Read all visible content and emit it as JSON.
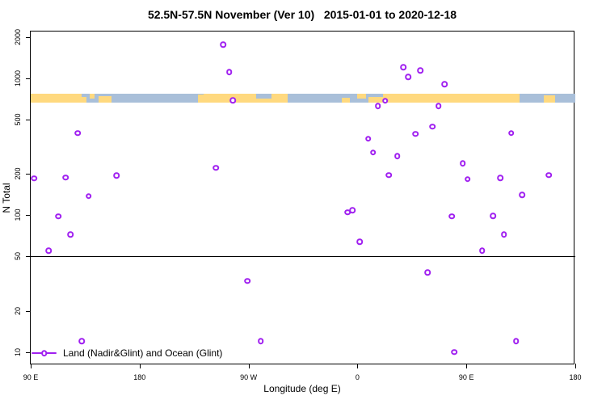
{
  "chart_data": {
    "type": "scatter",
    "title": "52.5N-57.5N November (Ver 10)   2015-01-01 to 2020-12-18",
    "xlabel": "Longitude (deg E)",
    "ylabel": "N Total",
    "y_scale": "log",
    "xlim": [
      90,
      540
    ],
    "ylim": [
      8,
      2200
    ],
    "x_ticks": [
      {
        "v": 90,
        "label": "90 E"
      },
      {
        "v": 180,
        "label": "180"
      },
      {
        "v": 270,
        "label": "90 W"
      },
      {
        "v": 360,
        "label": "0"
      },
      {
        "v": 450,
        "label": "90 E"
      },
      {
        "v": 540,
        "label": "180"
      }
    ],
    "y_ticks": [
      {
        "v": 10,
        "label": "10"
      },
      {
        "v": 20,
        "label": "20"
      },
      {
        "v": 50,
        "label": "50"
      },
      {
        "v": 100,
        "label": "100"
      },
      {
        "v": 200,
        "label": "200"
      },
      {
        "v": 500,
        "label": "500"
      },
      {
        "v": 1000,
        "label": "1000"
      },
      {
        "v": 2000,
        "label": "2000"
      }
    ],
    "reference_line_n": 50,
    "marker": {
      "shape": "open-circle",
      "color": "#A020F0",
      "stroke_px": 2.2
    },
    "legend": {
      "label": "Land (Nadir&Glint) and Ocean (Glint)"
    },
    "map_band": {
      "description": "land/ocean strip for 52.5N-57.5N drawn across longitudes",
      "n_top": 775,
      "n_bottom": 665,
      "land_color": "#FFD97F",
      "ocean_color": "#A9BFD9",
      "land_segments": [
        [
          90,
          132
        ],
        [
          233,
          302
        ],
        [
          381,
          494
        ]
      ],
      "land_patches": [
        [
          132,
          136,
          0.35,
          0.65
        ],
        [
          139,
          143,
          0.0,
          0.55
        ],
        [
          146,
          157,
          0.3,
          0.7
        ],
        [
          228,
          233,
          0.15,
          0.85
        ],
        [
          347,
          354,
          0.45,
          0.55
        ],
        [
          360,
          367,
          0.0,
          0.6
        ],
        [
          369,
          381,
          0.35,
          0.65
        ],
        [
          514,
          523,
          0.2,
          0.8
        ]
      ],
      "ocean_patches": [
        [
          276,
          289,
          0.0,
          0.6
        ]
      ]
    },
    "points_format": "[longitude_on_axis_deg_e, n_total]",
    "points": [
      [
        249,
        1770
      ],
      [
        254,
        1115
      ],
      [
        257,
        693
      ],
      [
        129,
        397
      ],
      [
        93,
        186
      ],
      [
        119,
        188
      ],
      [
        161,
        195
      ],
      [
        243,
        222
      ],
      [
        138,
        138
      ],
      [
        113,
        98
      ],
      [
        123,
        72
      ],
      [
        105,
        55
      ],
      [
        269,
        33
      ],
      [
        132,
        12
      ],
      [
        280,
        12
      ],
      [
        398,
        1210
      ],
      [
        412,
        1146
      ],
      [
        402,
        1028
      ],
      [
        432,
        910
      ],
      [
        377,
        630
      ],
      [
        383,
        684
      ],
      [
        427,
        630
      ],
      [
        422,
        443
      ],
      [
        408,
        392
      ],
      [
        487,
        397
      ],
      [
        369,
        361
      ],
      [
        373,
        287
      ],
      [
        393,
        271
      ],
      [
        447,
        240
      ],
      [
        386,
        196
      ],
      [
        451,
        183
      ],
      [
        478,
        187
      ],
      [
        518,
        196
      ],
      [
        496,
        141
      ],
      [
        352,
        105
      ],
      [
        356,
        109
      ],
      [
        362,
        64
      ],
      [
        438,
        98
      ],
      [
        472,
        99
      ],
      [
        481,
        72
      ],
      [
        463,
        55
      ],
      [
        418,
        38
      ],
      [
        440,
        10
      ],
      [
        491,
        12
      ]
    ]
  }
}
